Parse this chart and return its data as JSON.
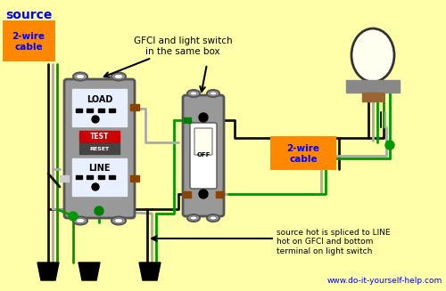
{
  "bg_color": "#FFFFAA",
  "source_label": "source",
  "cable_label": "2-wire\ncable",
  "cable_label2": "2-wire\ncable",
  "annotation1": "GFCI and light switch\nin the same box",
  "annotation2": "source hot is spliced to LINE\nhot on GFCI and bottom\nterminal on light switch",
  "website": "www.do-it-yourself-help.com",
  "black_wire": "#111111",
  "white_wire": "#AAAAAA",
  "green_wire": "#009900",
  "orange_box": "#FF8800",
  "blue_text": "#0000FF",
  "gray_device": "#888888",
  "light_gray": "#AAAAAA",
  "body_gray": "#999999",
  "dark_gray": "#555555",
  "white_panel": "#E8F0FF",
  "red_color": "#CC0000",
  "brown_screw": "#884400",
  "silver_screw": "#CCCCCC"
}
